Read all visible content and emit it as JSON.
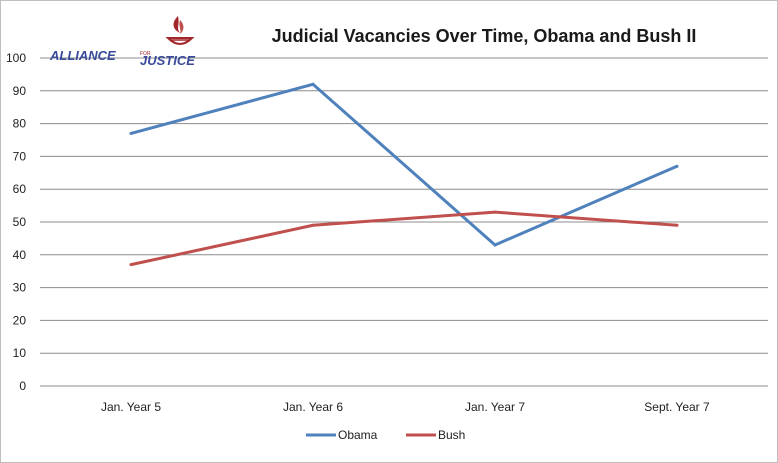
{
  "chart_data": {
    "type": "line",
    "title": "Judicial Vacancies Over Time, Obama and Bush II",
    "categories": [
      "Jan. Year 5",
      "Jan. Year 6",
      "Jan. Year 7",
      "Sept. Year 7"
    ],
    "series": [
      {
        "name": "Obama",
        "values": [
          77,
          92,
          43,
          67
        ],
        "color": "#4f81bd"
      },
      {
        "name": "Bush",
        "values": [
          37,
          49,
          53,
          49
        ],
        "color": "#c0504d"
      }
    ],
    "ylim": [
      0,
      100
    ],
    "yticks": [
      0,
      10,
      20,
      30,
      40,
      50,
      60,
      70,
      80,
      90,
      100
    ],
    "xlabel": "",
    "ylabel": "",
    "grid": true,
    "legend": "bottom"
  },
  "logo": {
    "text_main": "ALLIANCE",
    "text_small": "FOR",
    "text_sub": "JUSTICE",
    "icon": "flame-torch-icon",
    "colors": {
      "word": "#3a4a9a",
      "flame": "#a3262a"
    }
  }
}
